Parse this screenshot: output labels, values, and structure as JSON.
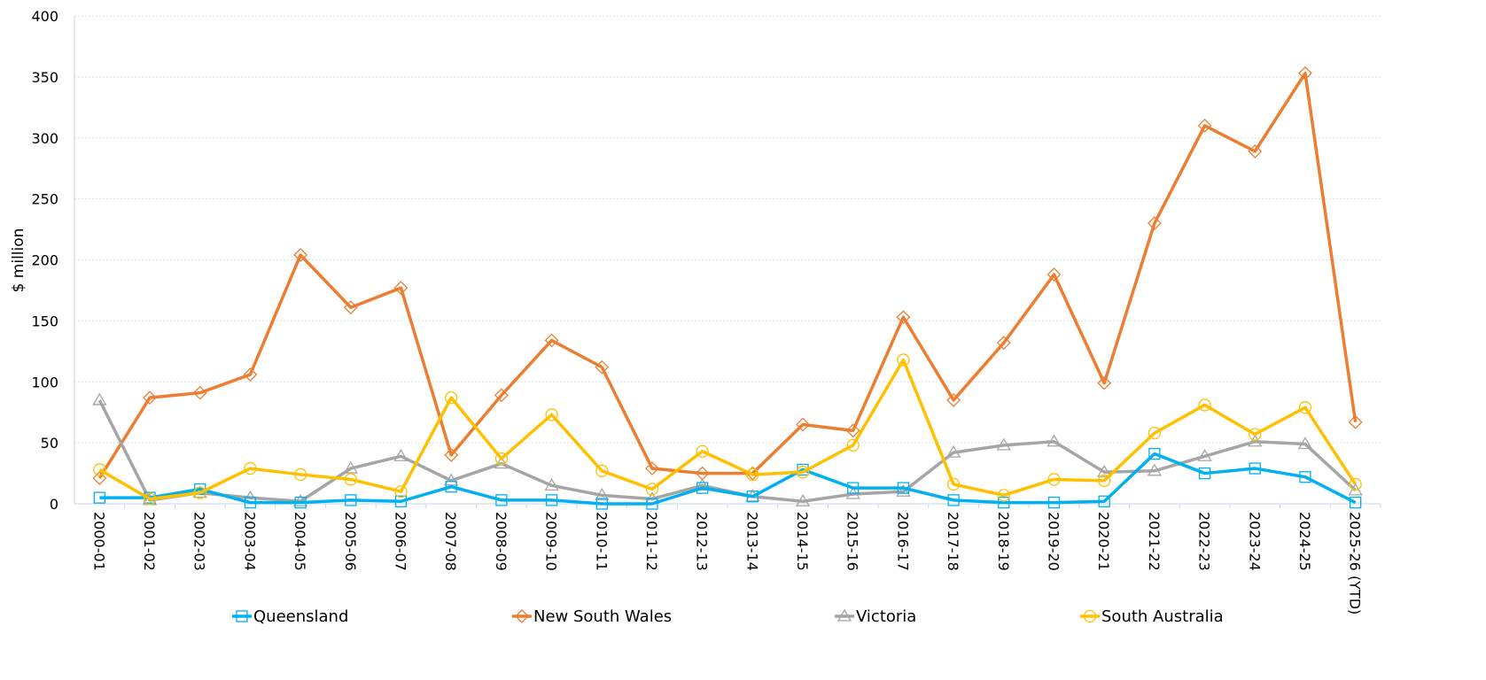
{
  "chart_data": {
    "type": "line",
    "title": "",
    "xlabel": "",
    "ylabel": "$ million",
    "ylim": [
      0,
      400
    ],
    "yticks": [
      0,
      50,
      100,
      150,
      200,
      250,
      300,
      350,
      400
    ],
    "grid": true,
    "legend_position": "bottom",
    "categories": [
      "2000-01",
      "2001-02",
      "2002-03",
      "2003-04",
      "2004-05",
      "2005-06",
      "2006-07",
      "2007-08",
      "2008-09",
      "2009-10",
      "2010-11",
      "2011-12",
      "2012-13",
      "2013-14",
      "2014-15",
      "2015-16",
      "2016-17",
      "2017-18",
      "2018-19",
      "2019-20",
      "2020-21",
      "2021-22",
      "2022-23",
      "2023-24",
      "2024-25",
      "2025-26 (YTD)"
    ],
    "series": [
      {
        "name": "Queensland",
        "color": "#00B0F0",
        "marker": "square",
        "values": [
          5,
          5,
          12,
          1,
          1,
          3,
          2,
          14,
          3,
          3,
          0,
          0,
          13,
          6,
          28,
          13,
          13,
          3,
          1,
          1,
          2,
          41,
          25,
          29,
          22,
          1
        ]
      },
      {
        "name": "New South Wales",
        "color": "#ED7D31",
        "marker": "diamond",
        "values": [
          21,
          87,
          91,
          106,
          204,
          161,
          177,
          40,
          89,
          134,
          112,
          29,
          25,
          25,
          65,
          60,
          153,
          85,
          132,
          188,
          99,
          230,
          310,
          289,
          353,
          67
        ]
      },
      {
        "name": "Victoria",
        "color": "#A5A5A5",
        "marker": "triangle",
        "values": [
          85,
          3,
          9,
          5,
          2,
          29,
          39,
          19,
          33,
          15,
          7,
          4,
          15,
          6,
          2,
          8,
          10,
          42,
          48,
          51,
          26,
          27,
          39,
          51,
          49,
          11
        ]
      },
      {
        "name": "South Australia",
        "color": "#FFC000",
        "marker": "circle",
        "values": [
          28,
          4,
          9,
          29,
          24,
          20,
          10,
          87,
          37,
          73,
          27,
          12,
          43,
          24,
          26,
          48,
          118,
          16,
          7,
          20,
          19,
          58,
          81,
          57,
          79,
          16
        ]
      }
    ]
  }
}
